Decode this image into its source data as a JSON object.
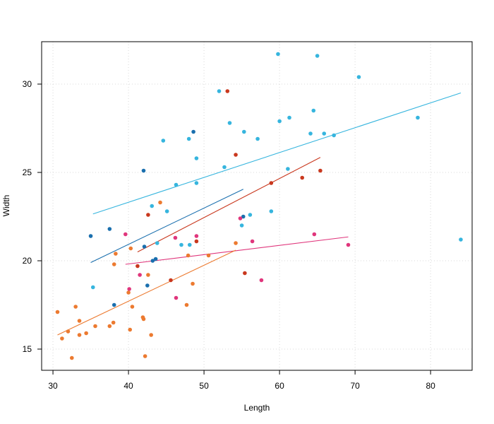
{
  "chart_data": {
    "type": "scatter",
    "title": "",
    "xlabel": "Length",
    "ylabel": "Width",
    "xlim": [
      28.5,
      85.5
    ],
    "ylim": [
      13.8,
      32.4
    ],
    "xticks": [
      30,
      40,
      50,
      60,
      70,
      80
    ],
    "yticks": [
      15,
      20,
      25,
      30
    ],
    "grid": true,
    "grid_style": "dotted",
    "legend": "none",
    "series": [
      {
        "color": "#36B5DE",
        "points": [
          [
            35.3,
            18.5
          ],
          [
            43.1,
            23.1
          ],
          [
            43.8,
            21.0
          ],
          [
            44.6,
            26.8
          ],
          [
            45.1,
            22.8
          ],
          [
            46.3,
            24.3
          ],
          [
            47.0,
            20.9
          ],
          [
            48.0,
            26.9
          ],
          [
            48.1,
            20.9
          ],
          [
            49.0,
            25.8
          ],
          [
            49.0,
            24.4
          ],
          [
            52.0,
            29.6
          ],
          [
            52.7,
            25.3
          ],
          [
            53.4,
            27.8
          ],
          [
            55.0,
            22.0
          ],
          [
            55.3,
            27.3
          ],
          [
            56.1,
            22.6
          ],
          [
            57.1,
            26.9
          ],
          [
            58.9,
            22.8
          ],
          [
            59.8,
            31.7
          ],
          [
            60.0,
            27.9
          ],
          [
            61.1,
            25.2
          ],
          [
            61.3,
            28.1
          ],
          [
            64.1,
            27.2
          ],
          [
            64.5,
            28.5
          ],
          [
            65.0,
            31.6
          ],
          [
            65.9,
            27.2
          ],
          [
            67.2,
            27.1
          ],
          [
            70.5,
            30.4
          ],
          [
            78.3,
            28.1
          ],
          [
            84.0,
            21.2
          ]
        ],
        "fit": [
          [
            35.3,
            22.65
          ],
          [
            84.0,
            29.5
          ]
        ]
      },
      {
        "color": "#1A6FAE",
        "points": [
          [
            35.0,
            21.4
          ],
          [
            37.5,
            21.8
          ],
          [
            38.1,
            17.5
          ],
          [
            42.0,
            25.1
          ],
          [
            42.1,
            20.8
          ],
          [
            42.5,
            18.6
          ],
          [
            43.2,
            20.0
          ],
          [
            43.6,
            20.1
          ],
          [
            48.6,
            27.3
          ],
          [
            55.2,
            22.5
          ]
        ],
        "fit": [
          [
            35.0,
            19.9
          ],
          [
            55.2,
            24.05
          ]
        ]
      },
      {
        "color": "#C9381E",
        "points": [
          [
            41.2,
            19.7
          ],
          [
            42.6,
            22.6
          ],
          [
            45.6,
            18.9
          ],
          [
            49.0,
            21.1
          ],
          [
            53.1,
            29.6
          ],
          [
            54.2,
            26.0
          ],
          [
            55.4,
            19.3
          ],
          [
            58.9,
            24.4
          ],
          [
            63.0,
            24.7
          ],
          [
            65.4,
            25.1
          ]
        ],
        "fit": [
          [
            41.2,
            20.5
          ],
          [
            65.4,
            25.85
          ]
        ]
      },
      {
        "color": "#E0367C",
        "points": [
          [
            39.6,
            21.5
          ],
          [
            40.1,
            18.4
          ],
          [
            41.5,
            19.2
          ],
          [
            46.2,
            21.3
          ],
          [
            46.3,
            17.9
          ],
          [
            49.0,
            21.4
          ],
          [
            54.8,
            22.4
          ],
          [
            56.4,
            21.1
          ],
          [
            57.6,
            18.9
          ],
          [
            64.6,
            21.5
          ],
          [
            69.1,
            20.9
          ]
        ],
        "fit": [
          [
            39.6,
            19.8
          ],
          [
            69.1,
            21.35
          ]
        ]
      },
      {
        "color": "#EC7A30",
        "points": [
          [
            30.6,
            17.1
          ],
          [
            31.2,
            15.6
          ],
          [
            32.0,
            16.0
          ],
          [
            32.5,
            14.5
          ],
          [
            33.0,
            17.4
          ],
          [
            33.5,
            15.8
          ],
          [
            33.5,
            16.6
          ],
          [
            34.4,
            15.9
          ],
          [
            35.6,
            16.3
          ],
          [
            37.5,
            16.3
          ],
          [
            38.0,
            16.5
          ],
          [
            38.1,
            19.8
          ],
          [
            38.3,
            20.4
          ],
          [
            40.0,
            18.2
          ],
          [
            40.2,
            16.1
          ],
          [
            40.3,
            20.7
          ],
          [
            40.5,
            17.4
          ],
          [
            41.9,
            16.8
          ],
          [
            42.0,
            16.7
          ],
          [
            42.2,
            14.6
          ],
          [
            42.6,
            19.2
          ],
          [
            43.0,
            15.8
          ],
          [
            44.2,
            23.3
          ],
          [
            47.7,
            17.5
          ],
          [
            47.9,
            20.3
          ],
          [
            48.5,
            18.7
          ],
          [
            50.6,
            20.3
          ],
          [
            54.2,
            21.0
          ]
        ],
        "fit": [
          [
            30.6,
            15.8
          ],
          [
            54.2,
            20.6
          ]
        ]
      }
    ]
  }
}
